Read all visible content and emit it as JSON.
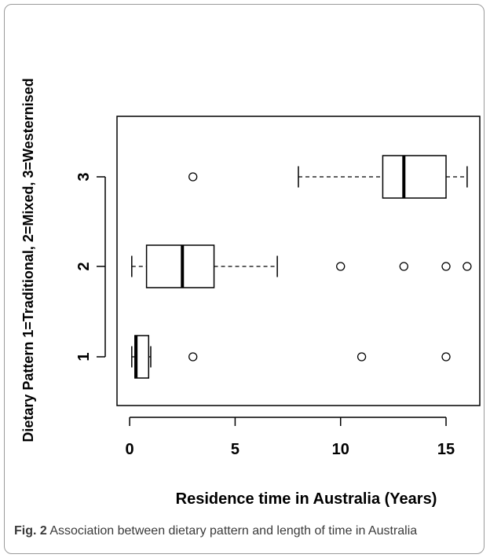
{
  "chart_data": {
    "type": "boxplot",
    "orientation": "horizontal",
    "xlabel": "Residence time in Australia (Years)",
    "ylabel": "Dietary Pattern 1=Traditional, 2=Mixed, 3=Westernised",
    "xlim": [
      -0.6,
      16.6
    ],
    "x_ticks": [
      0,
      5,
      10,
      15
    ],
    "y_ticks": [
      "1",
      "2",
      "3"
    ],
    "series": [
      {
        "category": "1",
        "whisker_low": 0.1,
        "q1": 0.25,
        "median": 0.3,
        "q3": 0.9,
        "whisker_high": 1.0,
        "outliers": [
          3,
          11,
          15
        ]
      },
      {
        "category": "2",
        "whisker_low": 0.1,
        "q1": 0.8,
        "median": 2.5,
        "q3": 4.0,
        "whisker_high": 7.0,
        "outliers": [
          10,
          13,
          15,
          16
        ]
      },
      {
        "category": "3",
        "whisker_low": 8.0,
        "q1": 12.0,
        "median": 13.0,
        "q3": 15.0,
        "whisker_high": 16.0,
        "outliers": [
          3
        ]
      }
    ]
  },
  "caption": {
    "label": "Fig. 2",
    "text": "Association between dietary pattern and length of time in Australia"
  }
}
